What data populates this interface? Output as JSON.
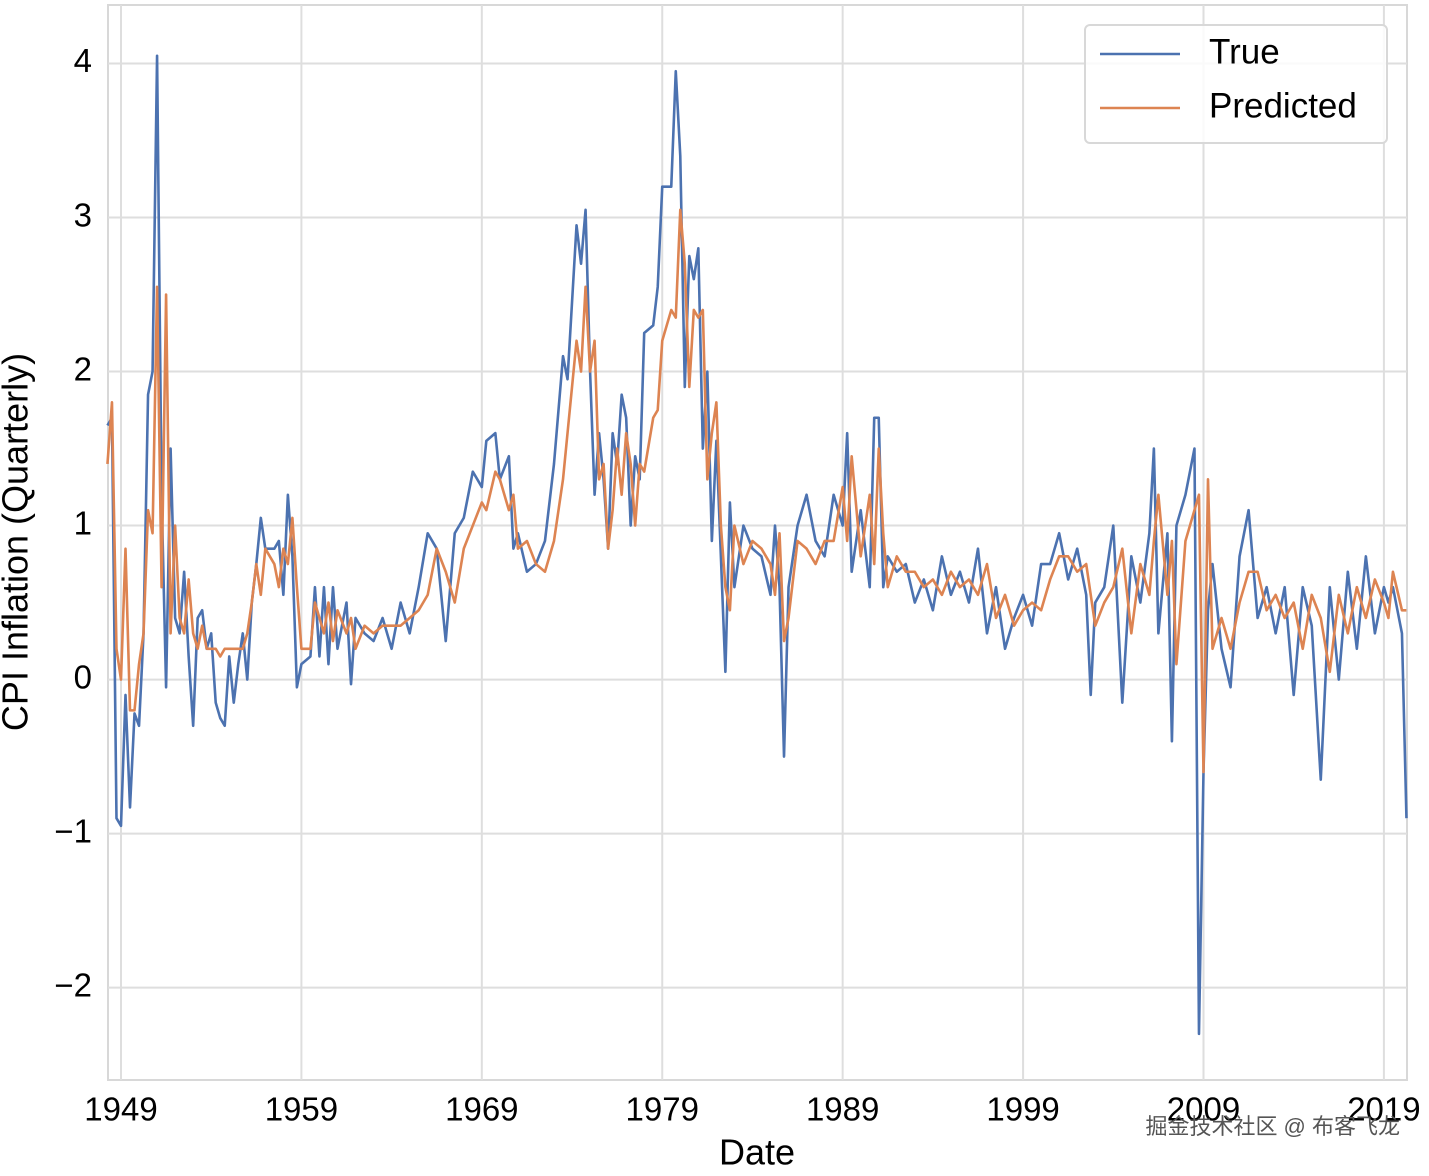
{
  "chart_data": {
    "type": "line",
    "xlabel": "Date",
    "ylabel": "CPI Inflation (Quarterly)",
    "watermark": "掘金技术社区 @ 布客飞龙",
    "x": [
      1948.25,
      1948.5,
      1948.75,
      1949,
      1949.25,
      1949.5,
      1949.75,
      1950,
      1950.25,
      1950.5,
      1950.75,
      1951,
      1951.25,
      1951.5,
      1951.75,
      1952,
      1952.25,
      1952.5,
      1952.75,
      1953,
      1953.25,
      1953.5,
      1953.75,
      1954,
      1954.25,
      1954.5,
      1954.75,
      1955,
      1955.25,
      1955.5,
      1955.75,
      1956,
      1956.25,
      1956.5,
      1956.75,
      1957,
      1957.5,
      1957.75,
      1958,
      1958.25,
      1958.5,
      1958.75,
      1959,
      1959.5,
      1959.75,
      1960,
      1960.25,
      1960.5,
      1960.75,
      1961,
      1961.5,
      1961.75,
      1962,
      1962.5,
      1963,
      1963.5,
      1964,
      1964.5,
      1965,
      1965.5,
      1966,
      1966.5,
      1967,
      1967.5,
      1968,
      1968.5,
      1969,
      1969.25,
      1969.75,
      1970,
      1970.5,
      1970.75,
      1971,
      1971.5,
      1972,
      1972.5,
      1973,
      1973.5,
      1973.75,
      1974.25,
      1974.5,
      1974.75,
      1975,
      1975.25,
      1975.5,
      1975.75,
      1976,
      1976.25,
      1976.5,
      1976.75,
      1977,
      1977.25,
      1977.5,
      1977.75,
      1978,
      1978.5,
      1978.75,
      1979,
      1979.5,
      1979.75,
      1980,
      1980.25,
      1980.5,
      1980.75,
      1981,
      1981.25,
      1981.5,
      1981.75,
      1982,
      1982.25,
      1982.5,
      1982.75,
      1983,
      1983.5,
      1984,
      1984.5,
      1985,
      1985.25,
      1985.5,
      1985.75,
      1986,
      1986.5,
      1987,
      1987.5,
      1988,
      1988.5,
      1989,
      1989.25,
      1989.5,
      1990,
      1990.5,
      1990.75,
      1991,
      1991.25,
      1991.5,
      1992,
      1992.5,
      1993,
      1993.5,
      1994,
      1994.5,
      1995,
      1995.5,
      1996,
      1996.5,
      1997,
      1997.5,
      1998,
      1998.5,
      1999,
      1999.5,
      2000,
      2000.5,
      2001,
      2001.5,
      2002,
      2002.5,
      2002.75,
      2003,
      2003.5,
      2004,
      2004.5,
      2005,
      2005.5,
      2006,
      2006.25,
      2006.5,
      2007,
      2007.25,
      2007.5,
      2008,
      2008.5,
      2008.75,
      2009,
      2009.25,
      2009.5,
      2010,
      2010.5,
      2011,
      2011.5,
      2012,
      2012.5,
      2013,
      2013.5,
      2014,
      2014.5,
      2015,
      2015.5,
      2016,
      2016.5,
      2017,
      2017.5,
      2018,
      2018.5,
      2019,
      2019.25,
      2019.5,
      2020,
      2020.25
    ],
    "series": [
      {
        "name": "True",
        "color": "#4c72b0",
        "values": [
          1.65,
          1.7,
          -0.9,
          -0.95,
          -0.1,
          -0.83,
          -0.22,
          -0.3,
          0.3,
          1.85,
          2.0,
          4.05,
          1.2,
          -0.05,
          1.5,
          0.4,
          0.3,
          0.7,
          0.15,
          -0.3,
          0.4,
          0.45,
          0.2,
          0.3,
          -0.15,
          -0.25,
          -0.3,
          0.15,
          -0.15,
          0.1,
          0.3,
          0,
          0.5,
          0.75,
          1.05,
          0.85,
          0.85,
          0.9,
          0.55,
          1.2,
          0.8,
          -0.05,
          0.1,
          0.15,
          0.6,
          0.15,
          0.6,
          0.1,
          0.6,
          0.2,
          0.5,
          -0.03,
          0.4,
          0.3,
          0.25,
          0.4,
          0.2,
          0.5,
          0.3,
          0.6,
          0.95,
          0.85,
          0.25,
          0.95,
          1.05,
          1.35,
          1.25,
          1.55,
          1.6,
          1.3,
          1.45,
          0.85,
          0.95,
          0.7,
          0.75,
          0.9,
          1.4,
          2.1,
          1.95,
          2.95,
          2.7,
          3.05,
          2.0,
          1.2,
          1.6,
          1.3,
          0.85,
          1.6,
          1.4,
          1.85,
          1.7,
          1.0,
          1.45,
          1.3,
          2.25,
          2.3,
          2.55,
          3.2,
          3.2,
          3.95,
          3.4,
          1.9,
          2.75,
          2.6,
          2.8,
          1.5,
          2.0,
          0.9,
          1.55,
          0.8,
          0.05,
          1.15,
          0.6,
          1.0,
          0.85,
          0.8,
          0.55,
          1.0,
          0.6,
          -0.5,
          0.6,
          1.0,
          1.2,
          0.9,
          0.8,
          1.2,
          1.0,
          1.6,
          0.7,
          1.1,
          0.6,
          1.7,
          1.7,
          0.6,
          0.8,
          0.7,
          0.75,
          0.5,
          0.65,
          0.45,
          0.8,
          0.55,
          0.7,
          0.5,
          0.85,
          0.3,
          0.6,
          0.2,
          0.4,
          0.55,
          0.35,
          0.75,
          0.75,
          0.95,
          0.65,
          0.85,
          0.55,
          -0.1,
          0.5,
          0.6,
          1.0,
          -0.15,
          0.8,
          0.5,
          0.95,
          1.5,
          0.3,
          0.95,
          -0.4,
          1.0,
          1.2,
          1.5,
          -2.3,
          -0.6,
          0.45,
          0.75,
          0.2,
          -0.05,
          0.8,
          1.1,
          0.4,
          0.6,
          0.3,
          0.6,
          -0.1,
          0.6,
          0.35,
          -0.65,
          0.6,
          0,
          0.7,
          0.2,
          0.8,
          0.3,
          0.6,
          0.5,
          0.6,
          0.3,
          -0.9
        ]
      },
      {
        "name": "Predicted",
        "color": "#dd8452",
        "values": [
          1.4,
          1.8,
          0.2,
          0,
          0.85,
          -0.2,
          -0.2,
          0.1,
          0.3,
          1.1,
          0.95,
          2.55,
          0.6,
          2.5,
          0.3,
          1.0,
          0.4,
          0.3,
          0.65,
          0.3,
          0.2,
          0.35,
          0.2,
          0.2,
          0.2,
          0.15,
          0.2,
          0.2,
          0.2,
          0.2,
          0.2,
          0.3,
          0.5,
          0.75,
          0.55,
          0.85,
          0.75,
          0.6,
          0.85,
          0.75,
          1.05,
          0.6,
          0.2,
          0.2,
          0.5,
          0.4,
          0.3,
          0.5,
          0.25,
          0.45,
          0.3,
          0.4,
          0.2,
          0.35,
          0.3,
          0.35,
          0.35,
          0.35,
          0.4,
          0.45,
          0.55,
          0.85,
          0.7,
          0.5,
          0.85,
          1.0,
          1.15,
          1.1,
          1.35,
          1.3,
          1.1,
          1.2,
          0.85,
          0.9,
          0.75,
          0.7,
          0.9,
          1.3,
          1.6,
          2.2,
          2.0,
          2.55,
          2.0,
          2.2,
          1.3,
          1.4,
          0.85,
          1.1,
          1.5,
          1.2,
          1.6,
          1.4,
          1.0,
          1.4,
          1.35,
          1.7,
          1.75,
          2.2,
          2.4,
          2.35,
          3.05,
          2.7,
          1.9,
          2.4,
          2.35,
          2.4,
          1.3,
          1.6,
          1.8,
          1.0,
          0.6,
          0.45,
          1.0,
          0.75,
          0.9,
          0.85,
          0.75,
          0.55,
          0.95,
          0.25,
          0.4,
          0.9,
          0.85,
          0.75,
          0.9,
          0.9,
          1.25,
          0.9,
          1.45,
          0.8,
          1.2,
          0.75,
          1.5,
          0.95,
          0.6,
          0.8,
          0.7,
          0.7,
          0.6,
          0.65,
          0.55,
          0.7,
          0.6,
          0.65,
          0.55,
          0.75,
          0.4,
          0.55,
          0.35,
          0.45,
          0.5,
          0.45,
          0.65,
          0.8,
          0.8,
          0.7,
          0.75,
          0.55,
          0.35,
          0.5,
          0.6,
          0.85,
          0.3,
          0.75,
          0.55,
          0.9,
          1.2,
          0.55,
          0.9,
          0.1,
          0.9,
          1.1,
          1.2,
          -0.6,
          1.3,
          0.2,
          0.4,
          0.2,
          0.5,
          0.7,
          0.7,
          0.45,
          0.55,
          0.4,
          0.5,
          0.2,
          0.55,
          0.4,
          0.05,
          0.55,
          0.3,
          0.6,
          0.4,
          0.65,
          0.5,
          0.4,
          0.7,
          0.45,
          0.45
        ]
      }
    ],
    "xlim": [
      1948.28,
      2020.28
    ],
    "ylim": [
      -2.6,
      4.38
    ],
    "xticks": [
      1949,
      1959,
      1969,
      1979,
      1989,
      1999,
      2009,
      2019
    ],
    "yticks": [
      {
        "value": -2,
        "label": "−2"
      },
      {
        "value": -1,
        "label": "−1"
      },
      0,
      1,
      2,
      3,
      4
    ],
    "grid": true,
    "legend": "upper right"
  }
}
